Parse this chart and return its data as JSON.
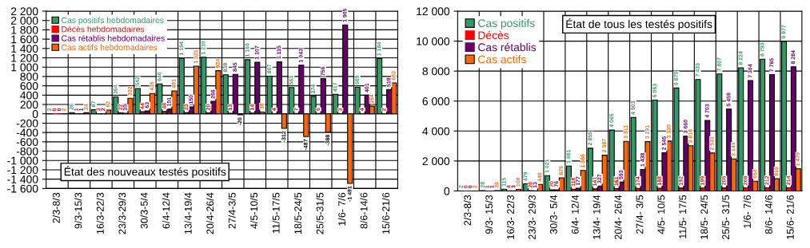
{
  "chart_data": [
    {
      "type": "bar",
      "title": "État des nouveaux testés positifs",
      "categories": [
        "2/3-8/3",
        "9/3-15/3",
        "16/3-22/3",
        "23/3-29/3",
        "30/3-5/4",
        "6/4-12/4",
        "13/4-19/4",
        "20/4-26/4",
        "27/4-3/5",
        "4/5-10/5",
        "11/5-17/5",
        "18/5-24/5",
        "25/5-31/5",
        "1/6- 7/6",
        "8/6-14/6",
        "15/6-21/6"
      ],
      "series": [
        {
          "name": "Cas positifs hebdomadaires",
          "color": "#339966",
          "values": [
            2,
            26,
            87,
            364,
            542,
            640,
            1194,
            1210,
            838,
            1160,
            807,
            563,
            374,
            417,
            569,
            1184
          ]
        },
        {
          "name": "Décès hebdomadaires",
          "color": "#ff0000",
          "values": [
            0,
            1,
            3,
            22,
            44,
            48,
            23,
            20,
            13,
            14,
            4,
            7,
            6,
            3,
            4,
            2
          ]
        },
        {
          "name": "Cas rétablis hebdomadaires",
          "color": "#660066",
          "values": [
            0,
            1,
            2,
            10,
            63,
            101,
            150,
            266,
            845,
            1107,
            1115,
            1043,
            756,
            1905,
            401,
            519
          ]
        },
        {
          "name": "Cas actifs hebdomadaires",
          "color": "#ff6600",
          "values": [
            2,
            24,
            82,
            332,
            435,
            491,
            1021,
            924,
            -20,
            39,
            -312,
            -487,
            -388,
            -1491,
            164,
            663
          ]
        }
      ],
      "ylim": [
        -1600,
        2200
      ],
      "yticks": [
        {
          "value": -1600,
          "label": "-1 600"
        },
        {
          "value": -1400,
          "label": "-1 400"
        },
        {
          "value": -1200,
          "label": "-1 200"
        },
        {
          "value": -1000,
          "label": "-1 000"
        },
        -800,
        -600,
        -400,
        -200,
        0,
        200,
        400,
        600,
        800,
        {
          "value": 1000,
          "label": "1 000"
        },
        {
          "value": 1200,
          "label": "1 200"
        },
        {
          "value": 1400,
          "label": "1 400"
        },
        {
          "value": 1600,
          "label": "1 600"
        },
        {
          "value": 1800,
          "label": "1 800"
        },
        {
          "value": 2000,
          "label": "2 000"
        },
        {
          "value": 2200,
          "label": "2 200"
        }
      ],
      "grid": true,
      "legend": "top left",
      "data_labels": true
    },
    {
      "type": "bar",
      "title": "État de tous les testés positifs",
      "categories": [
        "2/3-8/3",
        "9/3- 15/3",
        "16/3- 22/3",
        "23/3- 29/3",
        "30/3- 5/4",
        "6/4- 12/4",
        "13/4- 19/4",
        "20/4- 26/4",
        "27/4- 3/5",
        "4/5- 10/5",
        "11/5- 17/5",
        "18/5- 24/5",
        "25/5- 31/5",
        "1/6- 7/6",
        "8/6- 14/6",
        "15/6- 21/6"
      ],
      "series": [
        {
          "name": "Cas positifs",
          "color": "#339966",
          "values": [
            2,
            28,
            115,
            479,
            1021,
            1661,
            2855,
            4065,
            4903,
            6063,
            6870,
            7433,
            7807,
            8224,
            8793,
            9977
          ]
        },
        {
          "name": "Décès",
          "color": "#ff0000",
          "values": [
            0,
            1,
            4,
            26,
            70,
            118,
            141,
            161,
            174,
            188,
            192,
            199,
            205,
            208,
            212,
            214
          ]
        },
        {
          "name": "Cas rétablis",
          "color": "#660066",
          "values": [
            0,
            1,
            3,
            13,
            76,
            177,
            327,
            593,
            1438,
            2545,
            3660,
            4703,
            5459,
            7364,
            7765,
            8284
          ]
        },
        {
          "name": "Cas actifs",
          "color": "#ff6600",
          "values": [
            2,
            26,
            108,
            440,
            875,
            1366,
            2387,
            3311,
            3291,
            3330,
            3018,
            2531,
            2143,
            652,
            816,
            1479
          ]
        }
      ],
      "ylim": [
        0,
        12000
      ],
      "yticks": [
        0,
        {
          "value": 2000,
          "label": "2 000"
        },
        {
          "value": 4000,
          "label": "4 000"
        },
        {
          "value": 6000,
          "label": "6 000"
        },
        {
          "value": 8000,
          "label": "8 000"
        },
        {
          "value": 10000,
          "label": "10 000"
        },
        {
          "value": 12000,
          "label": "12 000"
        }
      ],
      "grid": true,
      "legend": "top left",
      "data_labels": true
    }
  ]
}
